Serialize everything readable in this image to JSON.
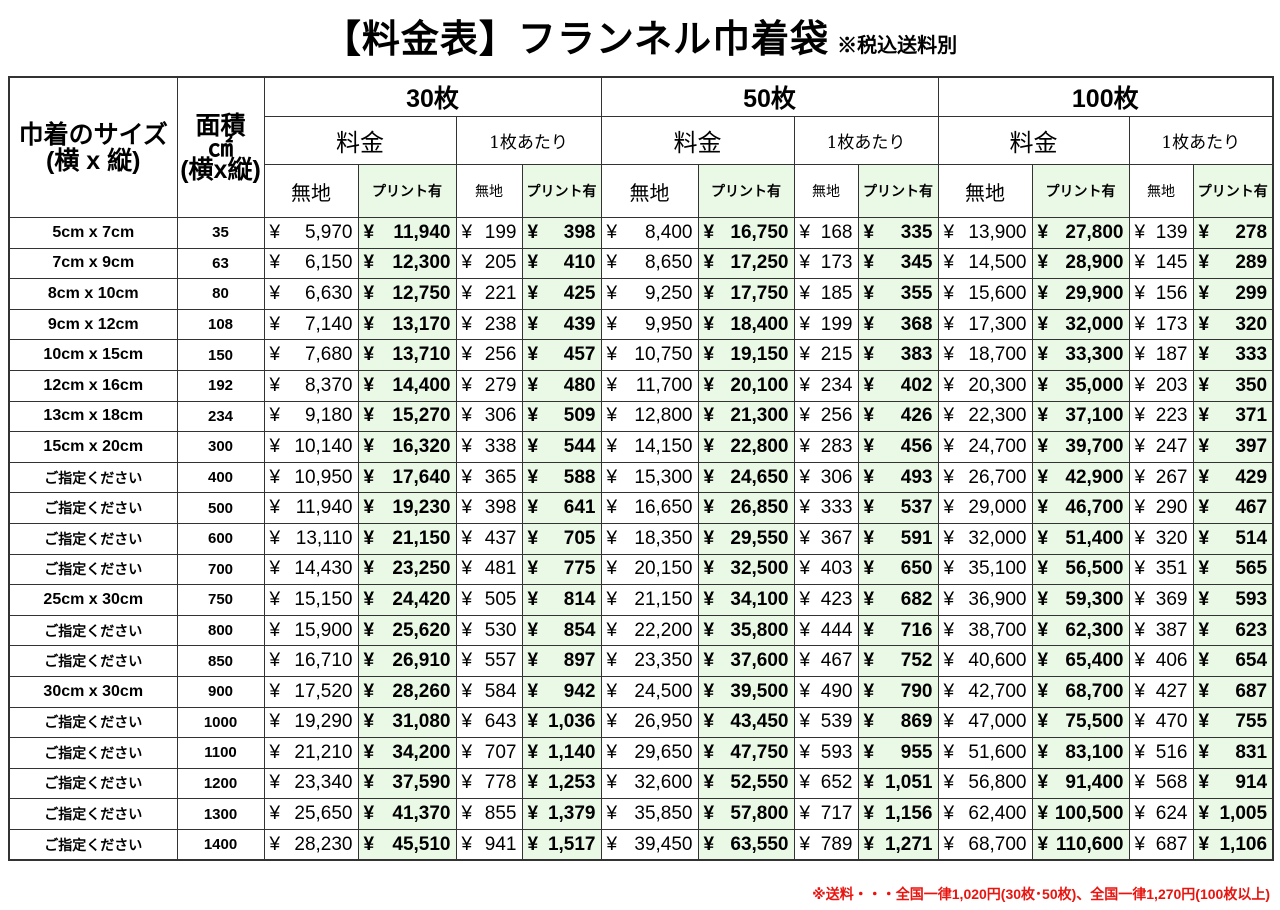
{
  "title": {
    "main": "【料金表】フランネル巾着袋",
    "note": "※税込送料別"
  },
  "header": {
    "size_label": "巾着のサイズ",
    "size_sub": "(横 x 縦)",
    "area_label": "面積",
    "area_unit": "㎠",
    "area_sub": "(横x縦)",
    "quantities": [
      "30枚",
      "50枚",
      "100枚"
    ],
    "fee": "料金",
    "per_piece": "1枚あたり",
    "plain": "無地",
    "print": "プリント有"
  },
  "currency": "¥",
  "colors": {
    "print_bg": "#eaf8e6",
    "footer": "#e8140f"
  },
  "rows": [
    [
      "5cm x 7cm",
      "35",
      "5,970",
      "11,940",
      "199",
      "398",
      "8,400",
      "16,750",
      "168",
      "335",
      "13,900",
      "27,800",
      "139",
      "278"
    ],
    [
      "7cm x 9cm",
      "63",
      "6,150",
      "12,300",
      "205",
      "410",
      "8,650",
      "17,250",
      "173",
      "345",
      "14,500",
      "28,900",
      "145",
      "289"
    ],
    [
      "8cm x 10cm",
      "80",
      "6,630",
      "12,750",
      "221",
      "425",
      "9,250",
      "17,750",
      "185",
      "355",
      "15,600",
      "29,900",
      "156",
      "299"
    ],
    [
      "9cm x 12cm",
      "108",
      "7,140",
      "13,170",
      "238",
      "439",
      "9,950",
      "18,400",
      "199",
      "368",
      "17,300",
      "32,000",
      "173",
      "320"
    ],
    [
      "10cm x 15cm",
      "150",
      "7,680",
      "13,710",
      "256",
      "457",
      "10,750",
      "19,150",
      "215",
      "383",
      "18,700",
      "33,300",
      "187",
      "333"
    ],
    [
      "12cm x 16cm",
      "192",
      "8,370",
      "14,400",
      "279",
      "480",
      "11,700",
      "20,100",
      "234",
      "402",
      "20,300",
      "35,000",
      "203",
      "350"
    ],
    [
      "13cm x 18cm",
      "234",
      "9,180",
      "15,270",
      "306",
      "509",
      "12,800",
      "21,300",
      "256",
      "426",
      "22,300",
      "37,100",
      "223",
      "371"
    ],
    [
      "15cm x 20cm",
      "300",
      "10,140",
      "16,320",
      "338",
      "544",
      "14,150",
      "22,800",
      "283",
      "456",
      "24,700",
      "39,700",
      "247",
      "397"
    ],
    [
      "ご指定ください",
      "400",
      "10,950",
      "17,640",
      "365",
      "588",
      "15,300",
      "24,650",
      "306",
      "493",
      "26,700",
      "42,900",
      "267",
      "429"
    ],
    [
      "ご指定ください",
      "500",
      "11,940",
      "19,230",
      "398",
      "641",
      "16,650",
      "26,850",
      "333",
      "537",
      "29,000",
      "46,700",
      "290",
      "467"
    ],
    [
      "ご指定ください",
      "600",
      "13,110",
      "21,150",
      "437",
      "705",
      "18,350",
      "29,550",
      "367",
      "591",
      "32,000",
      "51,400",
      "320",
      "514"
    ],
    [
      "ご指定ください",
      "700",
      "14,430",
      "23,250",
      "481",
      "775",
      "20,150",
      "32,500",
      "403",
      "650",
      "35,100",
      "56,500",
      "351",
      "565"
    ],
    [
      "25cm x 30cm",
      "750",
      "15,150",
      "24,420",
      "505",
      "814",
      "21,150",
      "34,100",
      "423",
      "682",
      "36,900",
      "59,300",
      "369",
      "593"
    ],
    [
      "ご指定ください",
      "800",
      "15,900",
      "25,620",
      "530",
      "854",
      "22,200",
      "35,800",
      "444",
      "716",
      "38,700",
      "62,300",
      "387",
      "623"
    ],
    [
      "ご指定ください",
      "850",
      "16,710",
      "26,910",
      "557",
      "897",
      "23,350",
      "37,600",
      "467",
      "752",
      "40,600",
      "65,400",
      "406",
      "654"
    ],
    [
      "30cm x 30cm",
      "900",
      "17,520",
      "28,260",
      "584",
      "942",
      "24,500",
      "39,500",
      "490",
      "790",
      "42,700",
      "68,700",
      "427",
      "687"
    ],
    [
      "ご指定ください",
      "1000",
      "19,290",
      "31,080",
      "643",
      "1,036",
      "26,950",
      "43,450",
      "539",
      "869",
      "47,000",
      "75,500",
      "470",
      "755"
    ],
    [
      "ご指定ください",
      "1100",
      "21,210",
      "34,200",
      "707",
      "1,140",
      "29,650",
      "47,750",
      "593",
      "955",
      "51,600",
      "83,100",
      "516",
      "831"
    ],
    [
      "ご指定ください",
      "1200",
      "23,340",
      "37,590",
      "778",
      "1,253",
      "32,600",
      "52,550",
      "652",
      "1,051",
      "56,800",
      "91,400",
      "568",
      "914"
    ],
    [
      "ご指定ください",
      "1300",
      "25,650",
      "41,370",
      "855",
      "1,379",
      "35,850",
      "57,800",
      "717",
      "1,156",
      "62,400",
      "100,500",
      "624",
      "1,005"
    ],
    [
      "ご指定ください",
      "1400",
      "28,230",
      "45,510",
      "941",
      "1,517",
      "39,450",
      "63,550",
      "789",
      "1,271",
      "68,700",
      "110,600",
      "687",
      "1,106"
    ]
  ],
  "footer": "※送料・・・全国一律1,020円(30枚･50枚)、全国一律1,270円(100枚以上)"
}
